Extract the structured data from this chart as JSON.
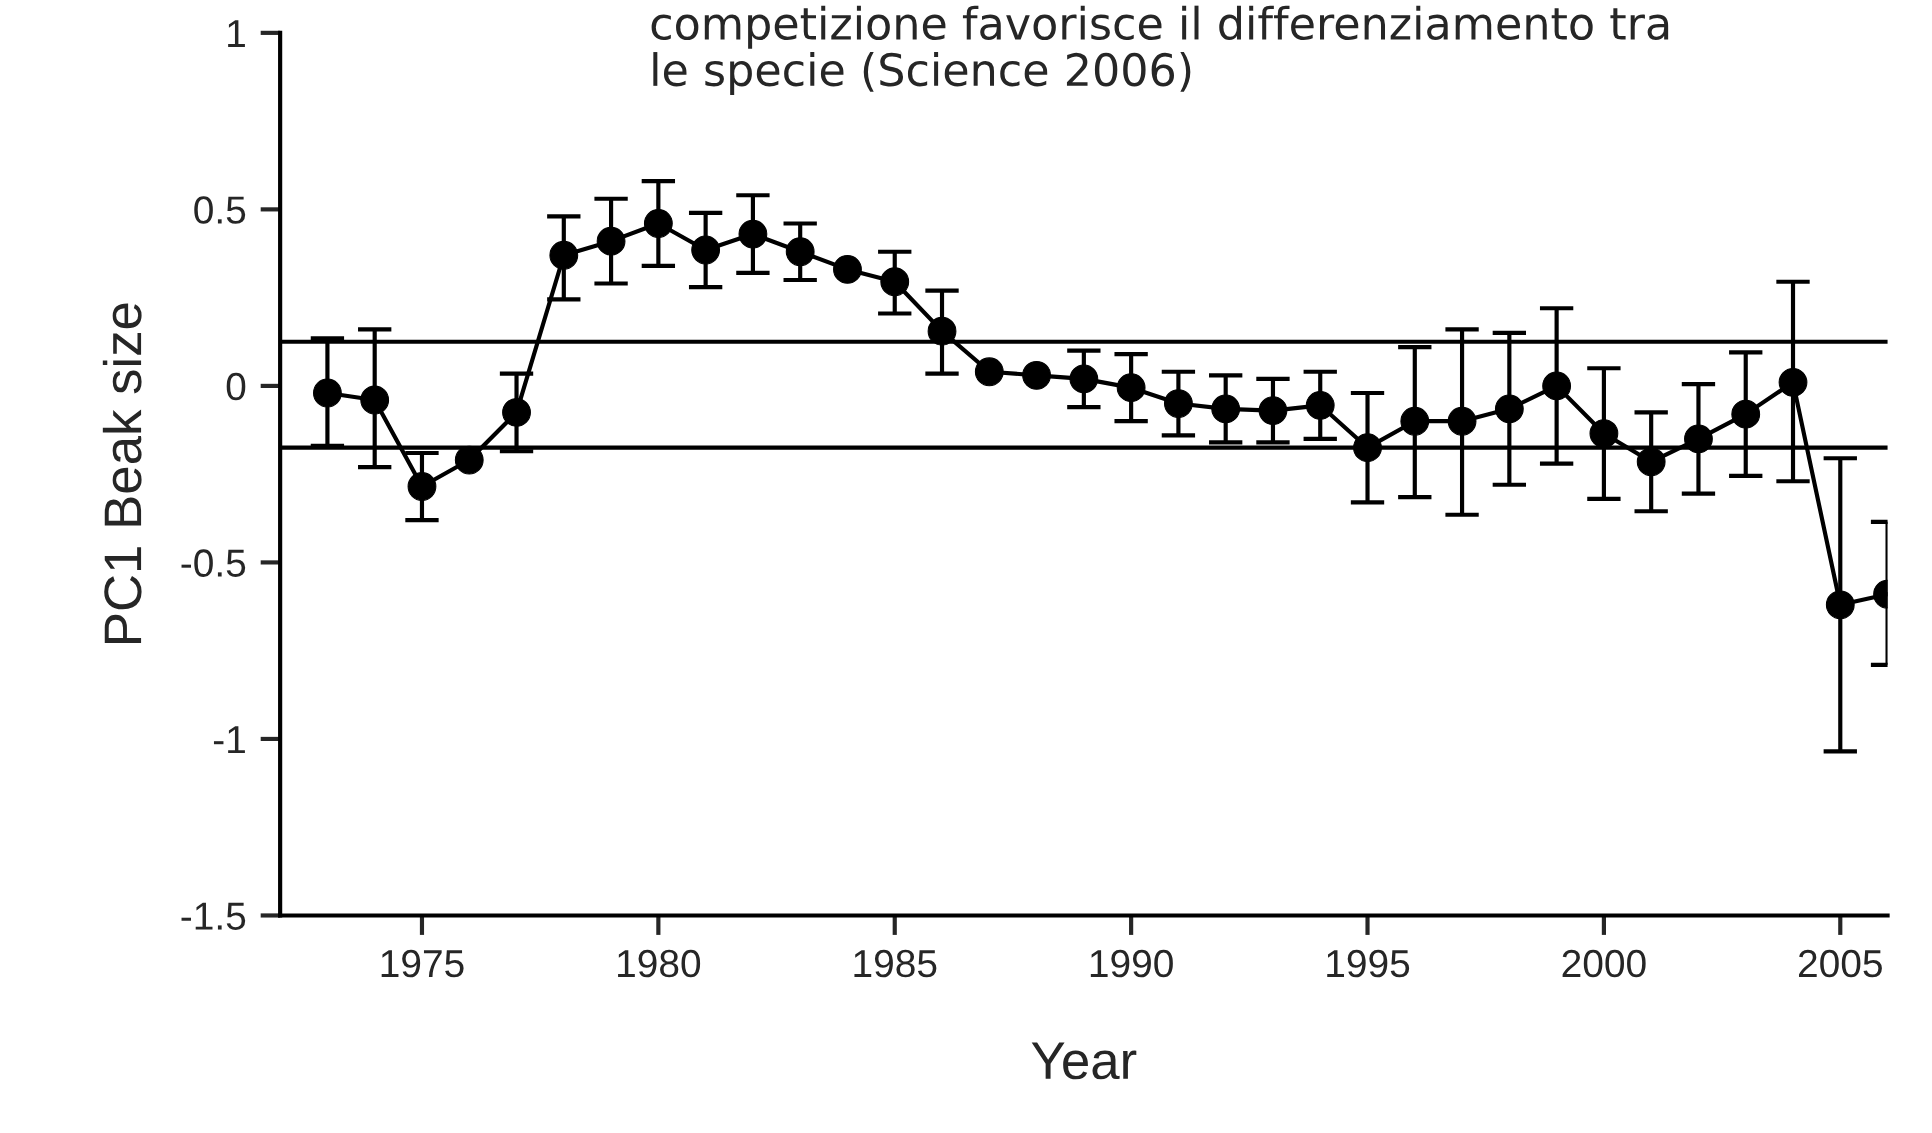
{
  "chart_data": {
    "type": "line",
    "xlabel": "Year",
    "ylabel": "PC1 Beak size",
    "annotations": [
      "competizione favorisce il differenziamento tra\nle specie (Science 2006)"
    ],
    "x": [
      1973,
      1974,
      1975,
      1976,
      1977,
      1978,
      1979,
      1980,
      1981,
      1982,
      1983,
      1984,
      1985,
      1986,
      1987,
      1988,
      1989,
      1990,
      1991,
      1992,
      1993,
      1994,
      1995,
      1996,
      1997,
      1998,
      1999,
      2000,
      2001,
      2002,
      2003,
      2004,
      2005,
      2006
    ],
    "series": [
      {
        "color": "#000000",
        "values": [
          -0.02,
          -0.04,
          -0.285,
          -0.21,
          -0.075,
          0.37,
          0.41,
          0.46,
          0.385,
          0.43,
          0.38,
          0.33,
          0.295,
          0.155,
          0.04,
          0.03,
          0.02,
          -0.005,
          -0.05,
          -0.065,
          -0.07,
          -0.055,
          -0.175,
          -0.1,
          -0.1,
          -0.065,
          0.0,
          -0.135,
          -0.215,
          -0.15,
          -0.08,
          0.01,
          -0.62,
          -0.59
        ],
        "errors": [
          [
            -0.17,
            0.135
          ],
          [
            -0.23,
            0.16
          ],
          [
            -0.38,
            -0.19
          ],
          null,
          [
            -0.185,
            0.035
          ],
          [
            0.245,
            0.48
          ],
          [
            0.29,
            0.53
          ],
          [
            0.34,
            0.58
          ],
          [
            0.28,
            0.49
          ],
          [
            0.32,
            0.54
          ],
          [
            0.3,
            0.46
          ],
          null,
          [
            0.205,
            0.38
          ],
          [
            0.035,
            0.27
          ],
          null,
          null,
          [
            -0.06,
            0.1
          ],
          [
            -0.1,
            0.09
          ],
          [
            -0.14,
            0.04
          ],
          [
            -0.16,
            0.03
          ],
          [
            -0.16,
            0.02
          ],
          [
            -0.15,
            0.04
          ],
          [
            -0.33,
            -0.02
          ],
          [
            -0.315,
            0.11
          ],
          [
            -0.365,
            0.16
          ],
          [
            -0.28,
            0.15
          ],
          [
            -0.22,
            0.22
          ],
          [
            -0.32,
            0.05
          ],
          [
            -0.355,
            -0.075
          ],
          [
            -0.305,
            0.005
          ],
          [
            -0.255,
            0.095
          ],
          [
            -0.27,
            0.295
          ],
          [
            -1.035,
            -0.205
          ],
          [
            -0.79,
            -0.385
          ]
        ]
      }
    ],
    "marker": "circle",
    "line_style": "solid",
    "xlim": [
      1972,
      2006
    ],
    "xticks": [
      1975,
      1980,
      1985,
      1990,
      1995,
      2000,
      2005
    ],
    "ylim": [
      -1.5,
      1
    ],
    "yticks": [
      -1.5,
      -1,
      -0.5,
      0,
      0.5,
      1
    ],
    "ref_lines": [
      {
        "axis": "y",
        "value": 0.125,
        "color": "#000000"
      },
      {
        "axis": "y",
        "value": -0.175,
        "color": "#000000"
      }
    ],
    "grid": false
  }
}
